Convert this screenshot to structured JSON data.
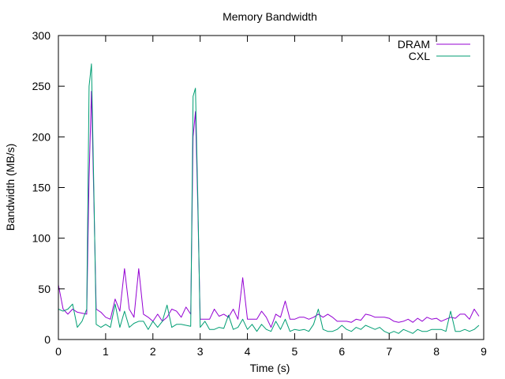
{
  "chart_data": {
    "type": "line",
    "title": "Memory Bandwidth",
    "xlabel": "Time (s)",
    "ylabel": "Bandwidth (MB/s)",
    "xlim": [
      0,
      9
    ],
    "ylim": [
      0,
      300
    ],
    "xticks": [
      0,
      1,
      2,
      3,
      4,
      5,
      6,
      7,
      8,
      9
    ],
    "yticks": [
      0,
      50,
      100,
      150,
      200,
      250,
      300
    ],
    "grid": false,
    "legend_position": "top-right",
    "series": [
      {
        "name": "DRAM",
        "color": "#9400D3",
        "x": [
          0.0,
          0.1,
          0.2,
          0.3,
          0.4,
          0.5,
          0.6,
          0.65,
          0.7,
          0.75,
          0.8,
          0.9,
          1.0,
          1.1,
          1.2,
          1.3,
          1.4,
          1.5,
          1.6,
          1.7,
          1.8,
          1.9,
          2.0,
          2.1,
          2.2,
          2.3,
          2.4,
          2.5,
          2.6,
          2.7,
          2.8,
          2.85,
          2.9,
          2.95,
          3.0,
          3.1,
          3.2,
          3.3,
          3.4,
          3.5,
          3.6,
          3.7,
          3.8,
          3.9,
          4.0,
          4.1,
          4.2,
          4.3,
          4.4,
          4.5,
          4.6,
          4.7,
          4.8,
          4.9,
          5.0,
          5.1,
          5.2,
          5.3,
          5.4,
          5.5,
          5.6,
          5.7,
          5.8,
          5.9,
          6.0,
          6.1,
          6.2,
          6.3,
          6.4,
          6.5,
          6.6,
          6.7,
          6.8,
          6.9,
          7.0,
          7.1,
          7.2,
          7.3,
          7.4,
          7.5,
          7.6,
          7.7,
          7.8,
          7.9,
          8.0,
          8.1,
          8.2,
          8.3,
          8.4,
          8.5,
          8.6,
          8.7,
          8.8,
          8.9
        ],
        "values": [
          54,
          30,
          25,
          30,
          27,
          26,
          25,
          160,
          245,
          140,
          30,
          27,
          22,
          20,
          40,
          28,
          70,
          30,
          22,
          70,
          25,
          22,
          18,
          25,
          18,
          22,
          30,
          28,
          22,
          32,
          25,
          200,
          225,
          130,
          20,
          20,
          20,
          30,
          23,
          25,
          22,
          30,
          20,
          61,
          20,
          20,
          20,
          28,
          22,
          12,
          25,
          22,
          38,
          20,
          20,
          22,
          22,
          20,
          22,
          25,
          22,
          25,
          22,
          18,
          18,
          18,
          17,
          20,
          19,
          25,
          24,
          22,
          22,
          22,
          21,
          18,
          17,
          18,
          20,
          17,
          21,
          18,
          22,
          20,
          21,
          18,
          20,
          22,
          21,
          25,
          25,
          20,
          30,
          23
        ]
      },
      {
        "name": "CXL",
        "color": "#009E73",
        "x": [
          0.0,
          0.1,
          0.2,
          0.3,
          0.4,
          0.5,
          0.6,
          0.65,
          0.7,
          0.75,
          0.8,
          0.9,
          1.0,
          1.1,
          1.2,
          1.3,
          1.4,
          1.5,
          1.6,
          1.7,
          1.8,
          1.9,
          2.0,
          2.1,
          2.2,
          2.3,
          2.4,
          2.5,
          2.6,
          2.7,
          2.8,
          2.85,
          2.9,
          2.95,
          3.0,
          3.1,
          3.2,
          3.3,
          3.4,
          3.5,
          3.6,
          3.7,
          3.8,
          3.9,
          4.0,
          4.1,
          4.2,
          4.3,
          4.4,
          4.5,
          4.6,
          4.7,
          4.8,
          4.9,
          5.0,
          5.1,
          5.2,
          5.3,
          5.4,
          5.5,
          5.6,
          5.7,
          5.8,
          5.9,
          6.0,
          6.1,
          6.2,
          6.3,
          6.4,
          6.5,
          6.6,
          6.7,
          6.8,
          6.9,
          7.0,
          7.1,
          7.2,
          7.3,
          7.4,
          7.5,
          7.6,
          7.7,
          7.8,
          7.9,
          8.0,
          8.1,
          8.2,
          8.3,
          8.4,
          8.5,
          8.6,
          8.7,
          8.8,
          8.9
        ],
        "values": [
          30,
          28,
          30,
          35,
          12,
          18,
          30,
          250,
          272,
          150,
          15,
          12,
          15,
          12,
          35,
          12,
          28,
          12,
          16,
          18,
          18,
          10,
          18,
          12,
          18,
          34,
          12,
          15,
          15,
          14,
          13,
          240,
          248,
          140,
          12,
          18,
          10,
          10,
          12,
          11,
          24,
          10,
          12,
          20,
          10,
          15,
          8,
          15,
          10,
          8,
          18,
          10,
          20,
          8,
          10,
          9,
          10,
          8,
          15,
          30,
          10,
          8,
          8,
          10,
          14,
          10,
          8,
          12,
          10,
          14,
          12,
          10,
          12,
          8,
          6,
          8,
          6,
          10,
          8,
          6,
          10,
          8,
          8,
          10,
          10,
          10,
          8,
          28,
          8,
          8,
          10,
          8,
          10,
          14
        ]
      }
    ]
  }
}
